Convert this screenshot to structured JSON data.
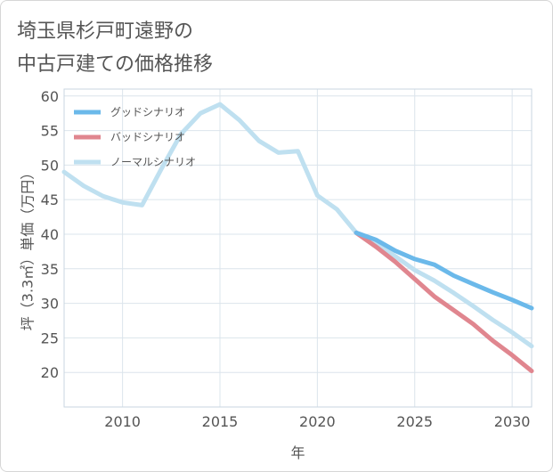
{
  "title": "埼玉県杉戸町遠野の\n中古戸建ての価格推移",
  "chart_data": {
    "type": "line",
    "xlabel": "年",
    "ylabel": "坪（3.3㎡）単価（万円）",
    "xlim": [
      2007,
      2031
    ],
    "ylim": [
      15,
      61
    ],
    "xticks": [
      2010,
      2015,
      2020,
      2025,
      2030
    ],
    "yticks": [
      20,
      25,
      30,
      35,
      40,
      45,
      50,
      55,
      60
    ],
    "grid": true,
    "legend_position": "top-left",
    "series": [
      {
        "name": "グッドシナリオ",
        "color": "#6bb9ea",
        "x": [
          2022,
          2023,
          2024,
          2025,
          2026,
          2027,
          2028,
          2029,
          2030,
          2031
        ],
        "y": [
          40.2,
          39.2,
          37.6,
          36.4,
          35.6,
          34.0,
          32.8,
          31.6,
          30.5,
          29.3
        ]
      },
      {
        "name": "バッドシナリオ",
        "color": "#e0868f",
        "x": [
          2022,
          2023,
          2024,
          2025,
          2026,
          2027,
          2028,
          2029,
          2030,
          2031
        ],
        "y": [
          40.2,
          38.2,
          36.0,
          33.5,
          31.0,
          29.0,
          27.0,
          24.6,
          22.5,
          20.2
        ]
      },
      {
        "name": "ノーマルシナリオ",
        "color": "#bfe0f0",
        "x": [
          2007,
          2008,
          2009,
          2010,
          2011,
          2012,
          2013,
          2014,
          2015,
          2016,
          2017,
          2018,
          2019,
          2020,
          2021,
          2022,
          2023,
          2024,
          2025,
          2026,
          2027,
          2028,
          2029,
          2030,
          2031
        ],
        "y": [
          49.0,
          47.0,
          45.5,
          44.6,
          44.2,
          49.5,
          54.5,
          57.5,
          58.8,
          56.5,
          53.5,
          51.8,
          52.0,
          45.6,
          43.6,
          40.2,
          38.7,
          36.8,
          34.8,
          33.3,
          31.5,
          29.6,
          27.6,
          25.8,
          23.8
        ]
      }
    ]
  }
}
